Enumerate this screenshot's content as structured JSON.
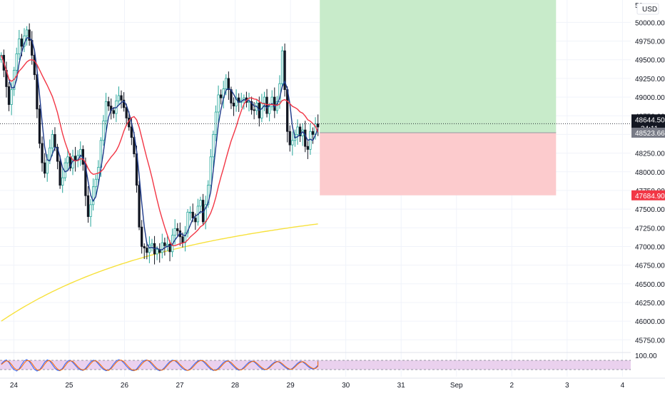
{
  "chart_data": {
    "type": "candlestick",
    "currency_label": "USD",
    "y_axis": {
      "min": 45600,
      "max": 50300,
      "ticks": [
        45750,
        46000,
        46250,
        46500,
        46750,
        47000,
        47250,
        47500,
        47750,
        48000,
        48250,
        48500,
        48750,
        49000,
        49250,
        49500,
        49750,
        50000
      ],
      "tick_labels": [
        "45750.00",
        "46000.00",
        "46250.00",
        "46500.00",
        "46750.00",
        "47000.00",
        "47250.00",
        "47500.00",
        "47750.00",
        "48000.00",
        "48250.00",
        "48500.00",
        "48750.00",
        "49000.00",
        "49250.00",
        "49500.00",
        "49750.00",
        "50000.00"
      ],
      "top_partial_label": "50"
    },
    "x_axis": {
      "day_ticks": [
        {
          "label": "24",
          "day": 0
        },
        {
          "label": "25",
          "day": 1
        },
        {
          "label": "26",
          "day": 2
        },
        {
          "label": "27",
          "day": 3
        },
        {
          "label": "28",
          "day": 4
        },
        {
          "label": "29",
          "day": 5
        },
        {
          "label": "30",
          "day": 6
        },
        {
          "label": "31",
          "day": 7
        },
        {
          "label": "Sep",
          "day": 8
        },
        {
          "label": "2",
          "day": 9
        },
        {
          "label": "3",
          "day": 10
        },
        {
          "label": "4",
          "day": 11
        }
      ],
      "visible_start_day": -0.25,
      "visible_end_day": 11.15
    },
    "price_markers": {
      "last_price": {
        "value": 48644.5,
        "label": "48644.50",
        "countdown": "34:11",
        "color": "#131722"
      },
      "entry": {
        "value": 48523.66,
        "label": "48523.66",
        "color": "#787b86"
      },
      "stop": {
        "value": 47684.9,
        "label": "47684.90",
        "color": "#f23645"
      }
    },
    "position_tool": {
      "start_day": 5.53,
      "end_day": 9.8,
      "entry": 48523.66,
      "stop": 47684.9,
      "target": 50300,
      "profit_color": "#c8ebca",
      "loss_color": "#fccbcd"
    },
    "candles_close": [
      49560,
      49360,
      49140,
      48900,
      49100,
      49360,
      49580,
      49780,
      49680,
      49820,
      49900,
      49760,
      49560,
      49300,
      48840,
      48380,
      48120,
      47980,
      48160,
      48320,
      48500,
      48330,
      48140,
      47820,
      47920,
      48120,
      48200,
      48050,
      48210,
      48150,
      48220,
      48300,
      48100,
      47680,
      47400,
      47560,
      47800,
      47900,
      48060,
      48420,
      48680,
      48940,
      48880,
      48820,
      48780,
      48950,
      49020,
      48960,
      48860,
      48720,
      48600,
      48460,
      48240,
      47820,
      47260,
      47000,
      46980,
      46920,
      47020,
      47040,
      46900,
      46960,
      46920,
      47050,
      47010,
      47030,
      46930,
      47150,
      47240,
      47210,
      47130,
      47050,
      47180,
      47460,
      47460,
      47380,
      47330,
      47540,
      47620,
      47330,
      47560,
      47820,
      48200,
      48500,
      48800,
      49030,
      48990,
      49110,
      49250,
      49100,
      48920,
      48880,
      48990,
      48930,
      48960,
      48990,
      48930,
      48940,
      48830,
      48820,
      48920,
      48720,
      48920,
      49000,
      48780,
      48870,
      49000,
      48820,
      48940,
      49180,
      49620,
      49100,
      48540,
      48360,
      48420,
      48500,
      48600,
      48480,
      48560,
      48340,
      48300,
      48540,
      48500,
      48640,
      48600
    ],
    "stoch_rsi": {
      "label": "100.00",
      "k": [
        60,
        78,
        88,
        70,
        40,
        20,
        10,
        25,
        55,
        82,
        90,
        76,
        50,
        22,
        10,
        18,
        44,
        72,
        88,
        80,
        55,
        30,
        15,
        12,
        30,
        60,
        80,
        86,
        70,
        50,
        30,
        18,
        14,
        28,
        52,
        74,
        86,
        80,
        60,
        38,
        22,
        12,
        16,
        34,
        60,
        80,
        90,
        84,
        66,
        44,
        26,
        14,
        12,
        24,
        48,
        70,
        84,
        88,
        76,
        56,
        36,
        20,
        12,
        18,
        36,
        58,
        76,
        86,
        82,
        66,
        46,
        28,
        16,
        14,
        26,
        46,
        66,
        80,
        86,
        78,
        60,
        40,
        24,
        14,
        16,
        30,
        50,
        70,
        82,
        78,
        60,
        42,
        26,
        16,
        20,
        36,
        56,
        72,
        80,
        74,
        58,
        40,
        26,
        18,
        24,
        40,
        58,
        72,
        78,
        70,
        54,
        38,
        26,
        20,
        28,
        46,
        64,
        76,
        74,
        60,
        44,
        30,
        24,
        32,
        50,
        66,
        76,
        80,
        74,
        62
      ],
      "d": [
        55,
        70,
        82,
        76,
        56,
        32,
        18,
        20,
        40,
        66,
        84,
        82,
        64,
        38,
        18,
        16,
        32,
        58,
        80,
        84,
        68,
        44,
        24,
        14,
        22,
        46,
        70,
        82,
        78,
        60,
        40,
        24,
        16,
        22,
        40,
        62,
        80,
        82,
        70,
        50,
        30,
        18,
        14,
        26,
        48,
        70,
        84,
        86,
        76,
        56,
        36,
        20,
        14,
        18,
        36,
        58,
        76,
        86,
        82,
        66,
        46,
        28,
        16,
        16,
        28,
        48,
        68,
        82,
        84,
        74,
        56,
        38,
        22,
        14,
        20,
        36,
        56,
        74,
        84,
        82,
        70,
        50,
        32,
        18,
        14,
        22,
        40,
        60,
        76,
        80,
        70,
        52,
        34,
        20,
        18,
        28,
        46,
        64,
        76,
        78,
        66,
        50,
        34,
        22,
        22,
        32,
        50,
        66,
        76,
        74,
        62,
        46,
        32,
        22,
        24,
        38,
        56,
        70,
        76,
        68,
        52,
        38,
        28,
        28,
        42,
        58,
        72,
        78,
        78,
        68
      ]
    }
  }
}
